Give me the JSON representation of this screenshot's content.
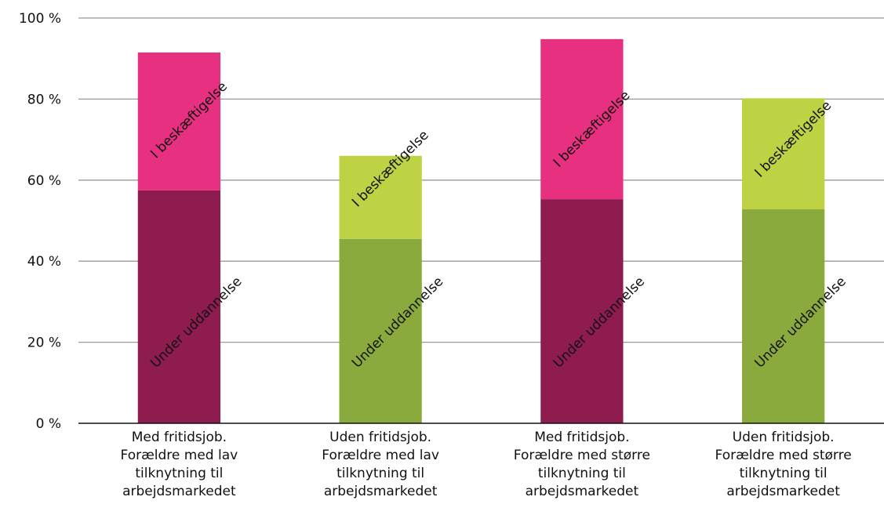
{
  "chart_data": {
    "type": "bar",
    "stacked": true,
    "categories": [
      [
        "Med fritidsjob.",
        "Forældre med lav",
        "tilknytning til",
        "arbejdsmarkedet"
      ],
      [
        "Uden fritidsjob.",
        "Forældre med lav",
        "tilknytning til",
        "arbejdsmarkedet"
      ],
      [
        "Med fritidsjob.",
        "Forældre med større",
        "tilknytning til",
        "arbejdsmarkedet"
      ],
      [
        "Uden fritidsjob.",
        "Forældre med større",
        "tilknytning til",
        "arbejdsmarkedet"
      ]
    ],
    "series": [
      {
        "segment_label": "Under uddannelse",
        "values": [
          57.5,
          45.5,
          55.3,
          52.8
        ],
        "colors": [
          "#8e1c4f",
          "#8aaa3e",
          "#8e1c4f",
          "#8aaa3e"
        ]
      },
      {
        "segment_label": "I beskæftigelse",
        "values": [
          34,
          20.5,
          39.5,
          27.4
        ],
        "colors": [
          "#e83080",
          "#bed244",
          "#e83080",
          "#bed244"
        ]
      }
    ],
    "yticks": [
      "0 %",
      "20 %",
      "40 %",
      "60 %",
      "80 %",
      "100 %"
    ],
    "ylim": [
      0,
      100
    ],
    "grid": true,
    "gridColor": "#999999"
  }
}
